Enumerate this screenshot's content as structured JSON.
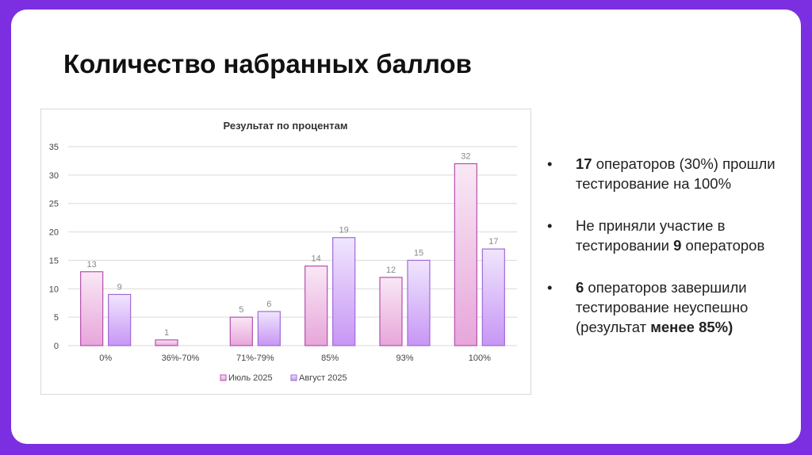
{
  "slide_title": "Количество набранных баллов",
  "chart_data": {
    "type": "bar",
    "title": "Результат по процентам",
    "categories": [
      "0%",
      "36%-70%",
      "71%-79%",
      "85%",
      "93%",
      "100%"
    ],
    "series": [
      {
        "name": "Июль 2025",
        "values": [
          13,
          1,
          5,
          14,
          12,
          32
        ],
        "color_top": "#f9e8f5",
        "color_bottom": "#e7a6da",
        "border": "#b450ad"
      },
      {
        "name": "Август 2025",
        "values": [
          9,
          null,
          6,
          19,
          15,
          17
        ],
        "color_top": "#f0e6fd",
        "color_bottom": "#c796f5",
        "border": "#a06ad8"
      }
    ],
    "ylim": [
      0,
      35
    ],
    "yticks": [
      0,
      5,
      10,
      15,
      20,
      25,
      30,
      35
    ],
    "grid": true,
    "legend": "bottom",
    "data_labels": true
  },
  "bullets": [
    {
      "bold": "17",
      "text": " операторов (30%) прошли тестирование на 100%"
    },
    {
      "pre": "Не приняли участие в тестировании ",
      "bold": "9",
      "text": " операторов"
    },
    {
      "bold": "6",
      "text": " операторов завершили тестирование неуспешно (результат ",
      "bold2": "менее 85%)"
    }
  ]
}
